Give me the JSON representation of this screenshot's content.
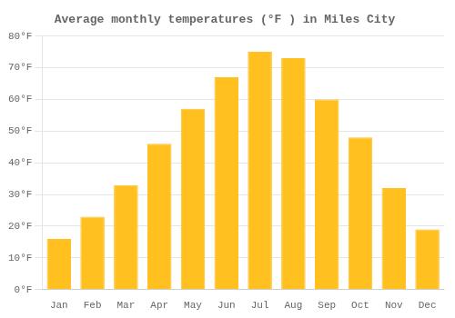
{
  "chart_data": {
    "type": "bar",
    "title": "Average monthly temperatures (°F ) in Miles City",
    "categories": [
      "Jan",
      "Feb",
      "Mar",
      "Apr",
      "May",
      "Jun",
      "Jul",
      "Aug",
      "Sep",
      "Oct",
      "Nov",
      "Dec"
    ],
    "values": [
      16,
      23,
      33,
      46,
      57,
      67,
      75,
      73,
      60,
      48,
      32,
      19
    ],
    "color": "#FFC020",
    "ylim": [
      0,
      80
    ],
    "yticks": [
      {
        "value": 0,
        "label": "0°F"
      },
      {
        "value": 10,
        "label": "10°F"
      },
      {
        "value": 20,
        "label": "20°F"
      },
      {
        "value": 30,
        "label": "30°F"
      },
      {
        "value": 40,
        "label": "40°F"
      },
      {
        "value": 50,
        "label": "50°F"
      },
      {
        "value": 60,
        "label": "60°F"
      },
      {
        "value": 70,
        "label": "70°F"
      },
      {
        "value": 80,
        "label": "80°F"
      }
    ],
    "grid": true
  }
}
